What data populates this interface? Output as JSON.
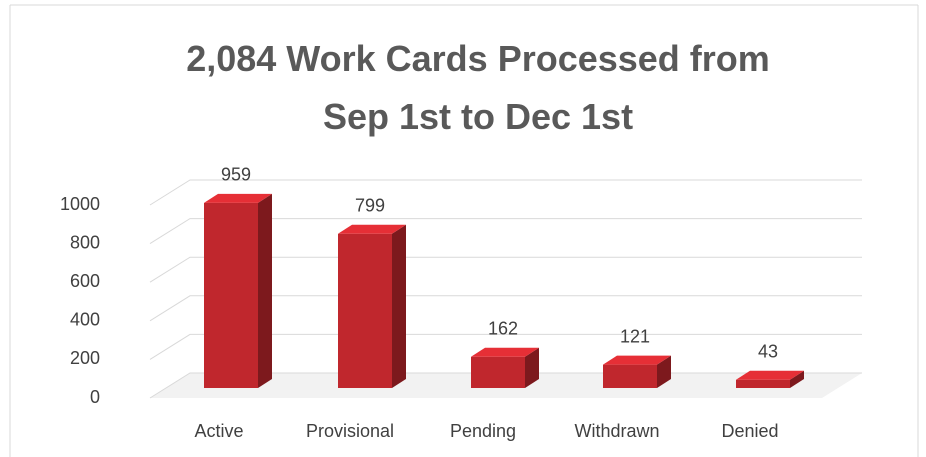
{
  "chart_data": {
    "type": "bar3d",
    "title": "2,084 Work Cards Processed from Sep 1st to Dec 1st",
    "categories": [
      "Active",
      "Provisional",
      "Pending",
      "Withdrawn",
      "Denied"
    ],
    "values": [
      959,
      799,
      162,
      121,
      43
    ],
    "color": "#c0272d",
    "ylim": [
      0,
      1000
    ],
    "yticks": [
      0,
      200,
      400,
      600,
      800,
      1000
    ],
    "grid": true
  }
}
